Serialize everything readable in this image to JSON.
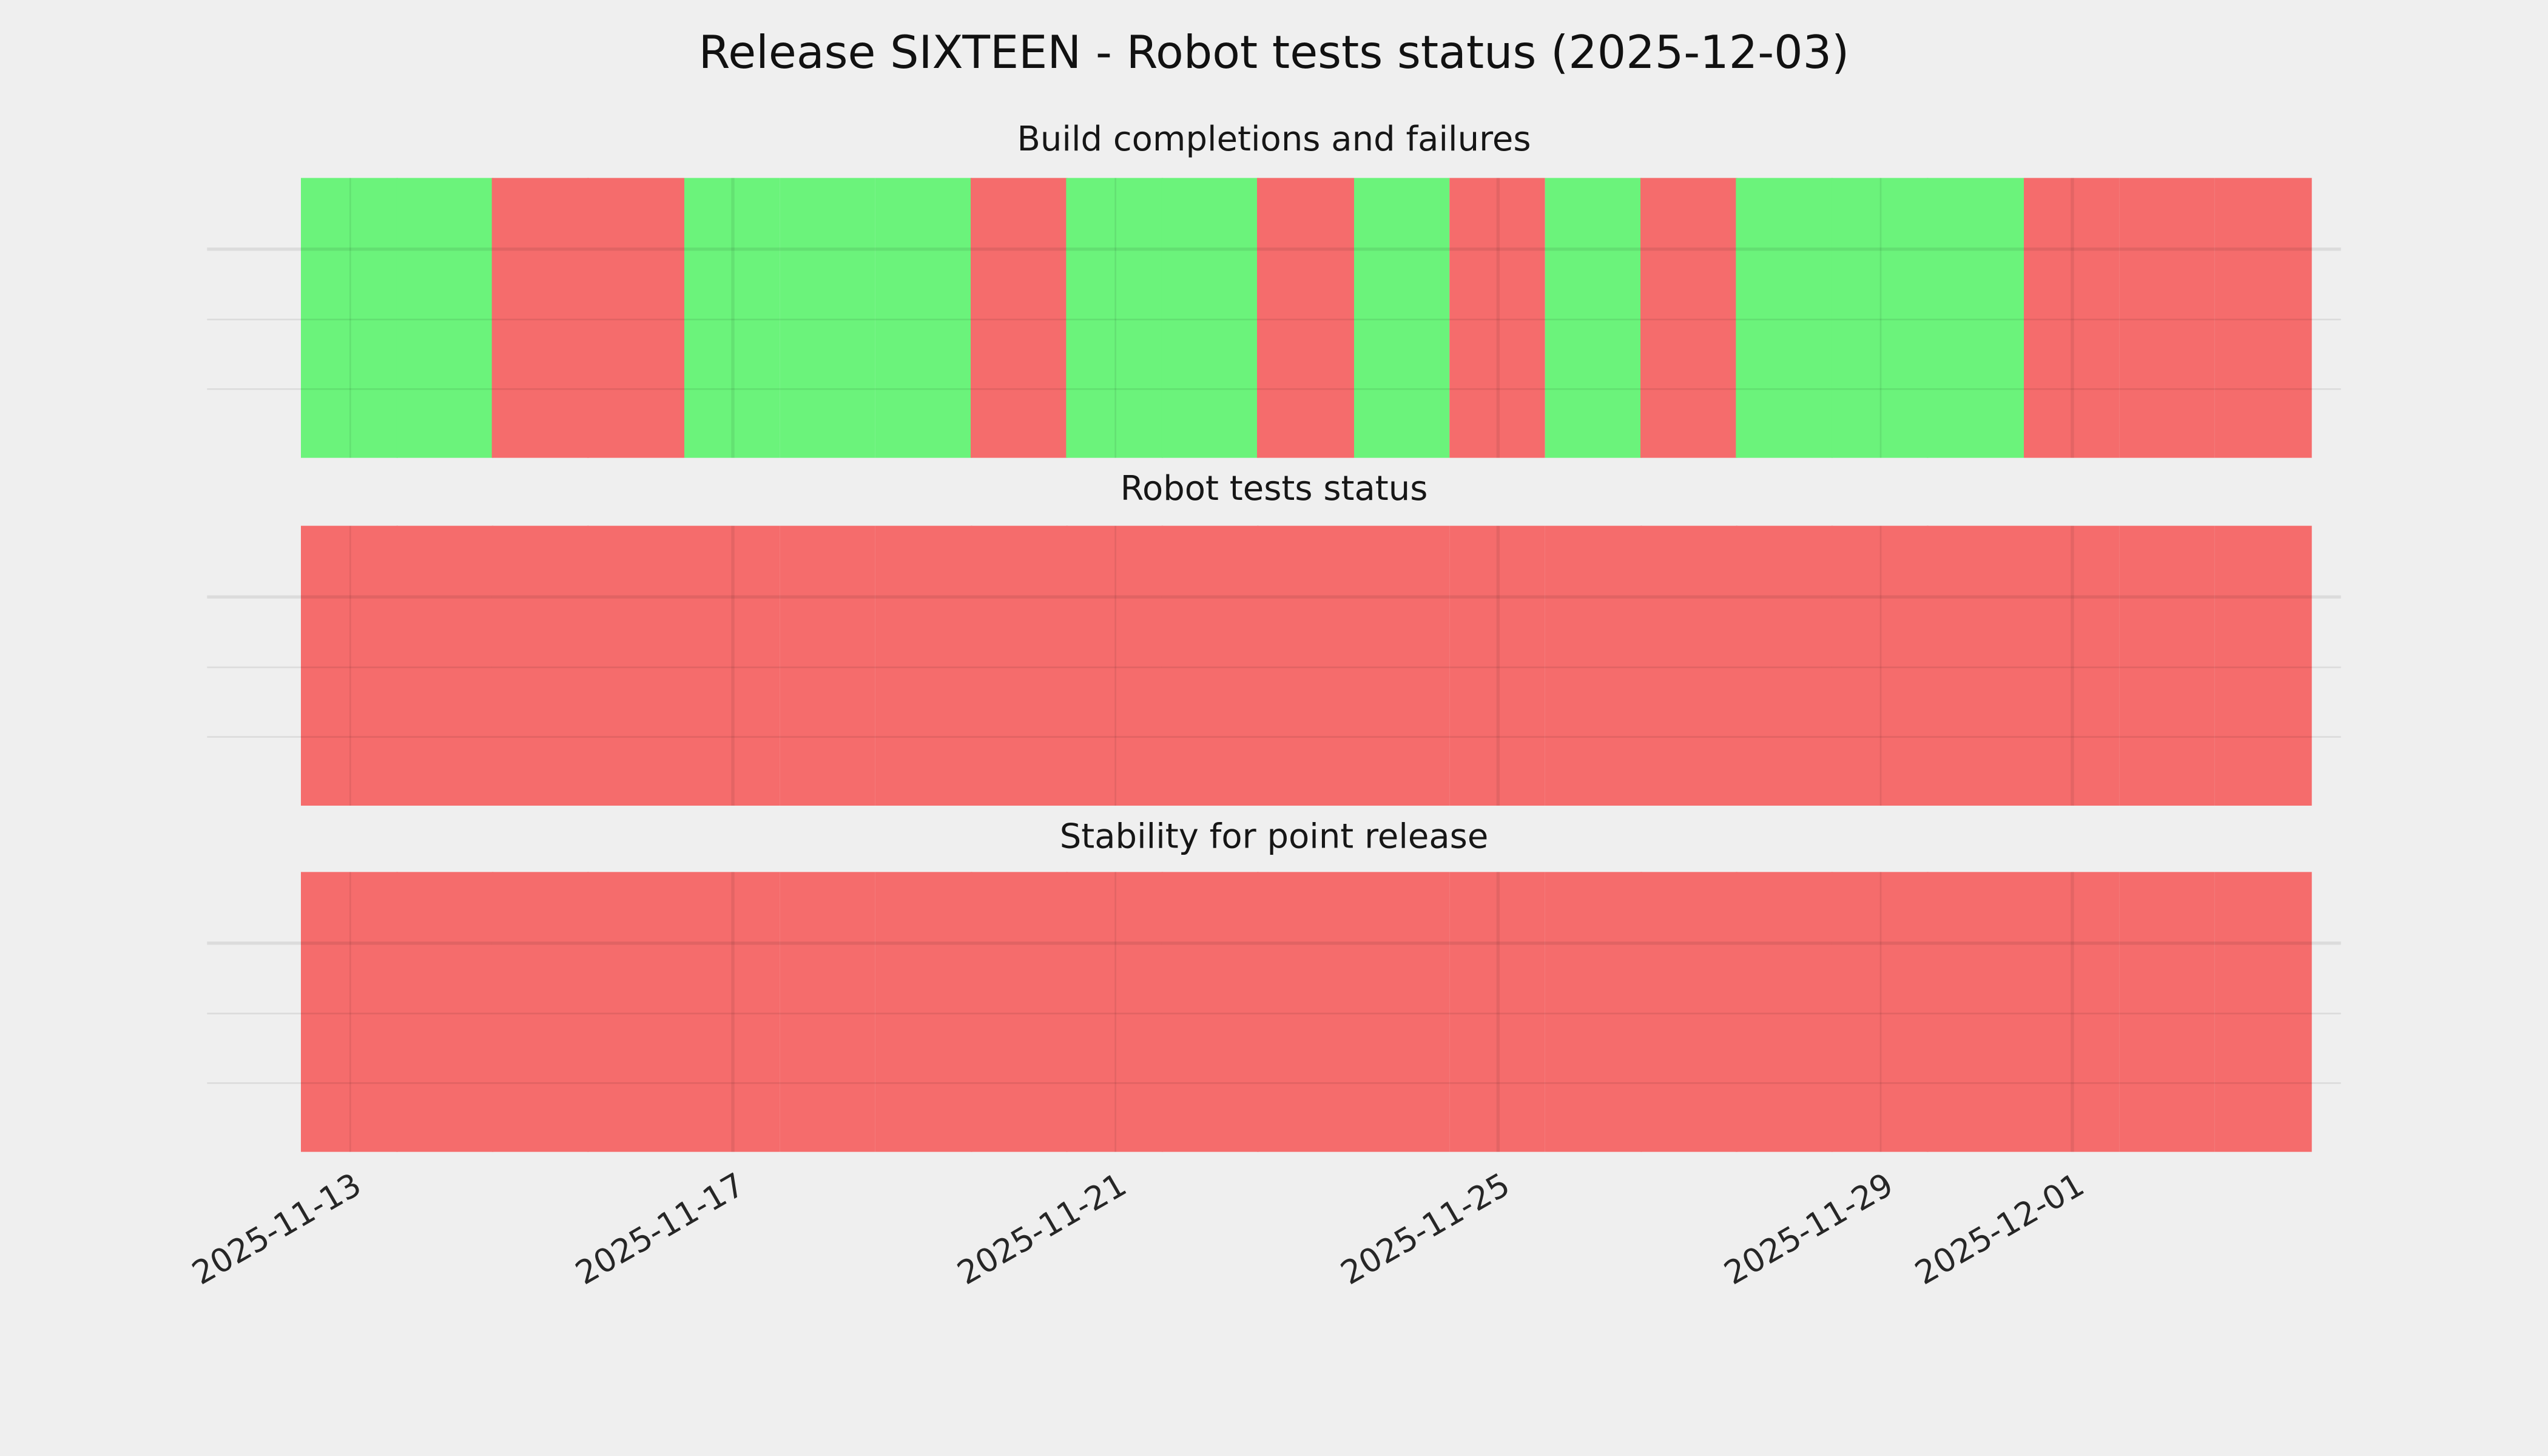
{
  "figure": {
    "title": "Release SIXTEEN - Robot tests status (2025-12-03)",
    "background_color": "#efefef",
    "grid": "on",
    "legend": "none"
  },
  "chart_data": {
    "type": "heatmap",
    "title": "Release SIXTEEN - Robot tests status (2025-12-03)",
    "x": [
      "2025-11-13",
      "2025-11-14",
      "2025-11-15",
      "2025-11-16",
      "2025-11-17",
      "2025-11-18",
      "2025-11-19",
      "2025-11-20",
      "2025-11-21",
      "2025-11-22",
      "2025-11-23",
      "2025-11-24",
      "2025-11-25",
      "2025-11-26",
      "2025-11-27",
      "2025-11-28",
      "2025-11-29",
      "2025-11-30",
      "2025-12-01",
      "2025-12-02",
      "2025-12-03"
    ],
    "x_tick_labels": [
      "2025-11-13",
      "2025-11-17",
      "2025-11-21",
      "2025-11-25",
      "2025-11-29",
      "2025-12-01"
    ],
    "value_colors": {
      "pass": "#6bf37b",
      "fail": "#f56c6c"
    },
    "panels": [
      {
        "title": "Build completions and failures",
        "values": [
          "pass",
          "pass",
          "fail",
          "fail",
          "pass",
          "pass",
          "pass",
          "fail",
          "pass",
          "pass",
          "fail",
          "pass",
          "fail",
          "pass",
          "fail",
          "pass",
          "pass",
          "pass",
          "fail",
          "fail",
          "fail"
        ]
      },
      {
        "title": "Robot tests status",
        "values": [
          "fail",
          "fail",
          "fail",
          "fail",
          "fail",
          "fail",
          "fail",
          "fail",
          "fail",
          "fail",
          "fail",
          "fail",
          "fail",
          "fail",
          "fail",
          "fail",
          "fail",
          "fail",
          "fail",
          "fail",
          "fail"
        ]
      },
      {
        "title": "Stability for point release",
        "values": [
          "fail",
          "fail",
          "fail",
          "fail",
          "fail",
          "fail",
          "fail",
          "fail",
          "fail",
          "fail",
          "fail",
          "fail",
          "fail",
          "fail",
          "fail",
          "fail",
          "fail",
          "fail",
          "fail",
          "fail",
          "fail"
        ]
      }
    ]
  }
}
